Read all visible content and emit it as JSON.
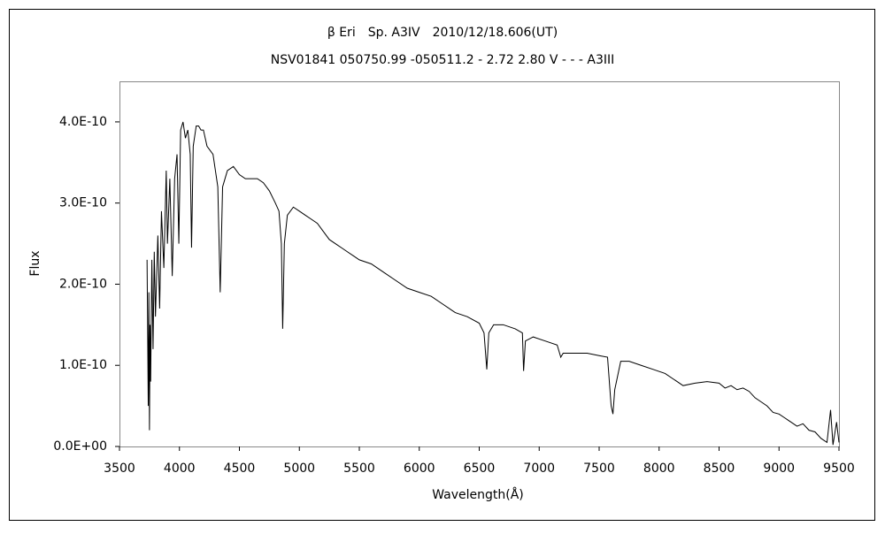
{
  "chart_data": {
    "type": "line",
    "title": "β Eri　Sp. A3IV　2010/12/18.606(UT)",
    "subtitle": "NSV01841 050750.99 -050511.2 - 2.72 2.80 V - - - A3III",
    "x_label": "Wavelength(Å)",
    "y_label": "Flux",
    "xlim": [
      3500,
      9500
    ],
    "xticks": [
      3500,
      4000,
      4500,
      5000,
      5500,
      6000,
      6500,
      7000,
      7500,
      8000,
      8500,
      9000,
      9500
    ],
    "ylim": [
      0,
      4.5e-10
    ],
    "yticks": [
      {
        "value": 0,
        "label": "0.0E+00"
      },
      {
        "value": 1e-10,
        "label": "1.0E-10"
      },
      {
        "value": 2e-10,
        "label": "2.0E-10"
      },
      {
        "value": 3e-10,
        "label": "3.0E-10"
      },
      {
        "value": 4e-10,
        "label": "4.0E-10"
      }
    ],
    "grid": false,
    "series": [
      {
        "color": "#000000",
        "x": [
          3730,
          3740,
          3745,
          3750,
          3755,
          3760,
          3770,
          3780,
          3790,
          3800,
          3820,
          3835,
          3850,
          3870,
          3890,
          3900,
          3920,
          3940,
          3960,
          3980,
          3995,
          4010,
          4030,
          4050,
          4070,
          4090,
          4101,
          4115,
          4140,
          4160,
          4180,
          4200,
          4230,
          4280,
          4320,
          4340,
          4360,
          4400,
          4450,
          4500,
          4550,
          4600,
          4650,
          4700,
          4750,
          4800,
          4830,
          4850,
          4861,
          4875,
          4900,
          4950,
          5000,
          5050,
          5100,
          5150,
          5200,
          5250,
          5300,
          5350,
          5400,
          5450,
          5500,
          5600,
          5700,
          5800,
          5900,
          6000,
          6100,
          6200,
          6300,
          6400,
          6500,
          6540,
          6563,
          6580,
          6620,
          6700,
          6800,
          6860,
          6870,
          6885,
          6950,
          7050,
          7150,
          7180,
          7200,
          7250,
          7300,
          7400,
          7500,
          7570,
          7600,
          7615,
          7630,
          7680,
          7750,
          7850,
          7950,
          8050,
          8150,
          8200,
          8300,
          8400,
          8500,
          8550,
          8600,
          8650,
          8700,
          8750,
          8800,
          8850,
          8900,
          8950,
          9000,
          9050,
          9100,
          9150,
          9200,
          9250,
          9300,
          9350,
          9400,
          9430,
          9450,
          9480,
          9500
        ],
        "values": [
          2.3e-10,
          5e-11,
          1.9e-10,
          2e-11,
          1.5e-10,
          8e-11,
          2.3e-10,
          1.2e-10,
          2.4e-10,
          1.6e-10,
          2.6e-10,
          1.7e-10,
          2.9e-10,
          2.2e-10,
          3.4e-10,
          2.5e-10,
          3.3e-10,
          2.1e-10,
          3.3e-10,
          3.6e-10,
          2.5e-10,
          3.9e-10,
          4e-10,
          3.8e-10,
          3.9e-10,
          3.6e-10,
          2.45e-10,
          3.7e-10,
          3.95e-10,
          3.95e-10,
          3.9e-10,
          3.9e-10,
          3.7e-10,
          3.6e-10,
          3.2e-10,
          1.9e-10,
          3.2e-10,
          3.4e-10,
          3.45e-10,
          3.35e-10,
          3.3e-10,
          3.3e-10,
          3.3e-10,
          3.25e-10,
          3.15e-10,
          3e-10,
          2.9e-10,
          2.5e-10,
          1.45e-10,
          2.5e-10,
          2.85e-10,
          2.95e-10,
          2.9e-10,
          2.85e-10,
          2.8e-10,
          2.75e-10,
          2.65e-10,
          2.55e-10,
          2.5e-10,
          2.45e-10,
          2.4e-10,
          2.35e-10,
          2.3e-10,
          2.25e-10,
          2.15e-10,
          2.05e-10,
          1.95e-10,
          1.9e-10,
          1.85e-10,
          1.75e-10,
          1.65e-10,
          1.6e-10,
          1.52e-10,
          1.4e-10,
          9.5e-11,
          1.4e-10,
          1.5e-10,
          1.5e-10,
          1.45e-10,
          1.4e-10,
          9.3e-11,
          1.3e-10,
          1.35e-10,
          1.3e-10,
          1.25e-10,
          1.1e-10,
          1.15e-10,
          1.15e-10,
          1.15e-10,
          1.15e-10,
          1.12e-10,
          1.1e-10,
          5e-11,
          4e-11,
          7e-11,
          1.05e-10,
          1.05e-10,
          1e-10,
          9.5e-11,
          9e-11,
          8e-11,
          7.5e-11,
          7.8e-11,
          8e-11,
          7.8e-11,
          7.2e-11,
          7.5e-11,
          7e-11,
          7.2e-11,
          6.8e-11,
          6e-11,
          5.5e-11,
          5e-11,
          4.2e-11,
          4e-11,
          3.5e-11,
          3e-11,
          2.5e-11,
          2.8e-11,
          2e-11,
          1.8e-11,
          1e-11,
          5e-12,
          4.5e-11,
          2e-12,
          3e-11,
          5e-12
        ]
      }
    ]
  }
}
